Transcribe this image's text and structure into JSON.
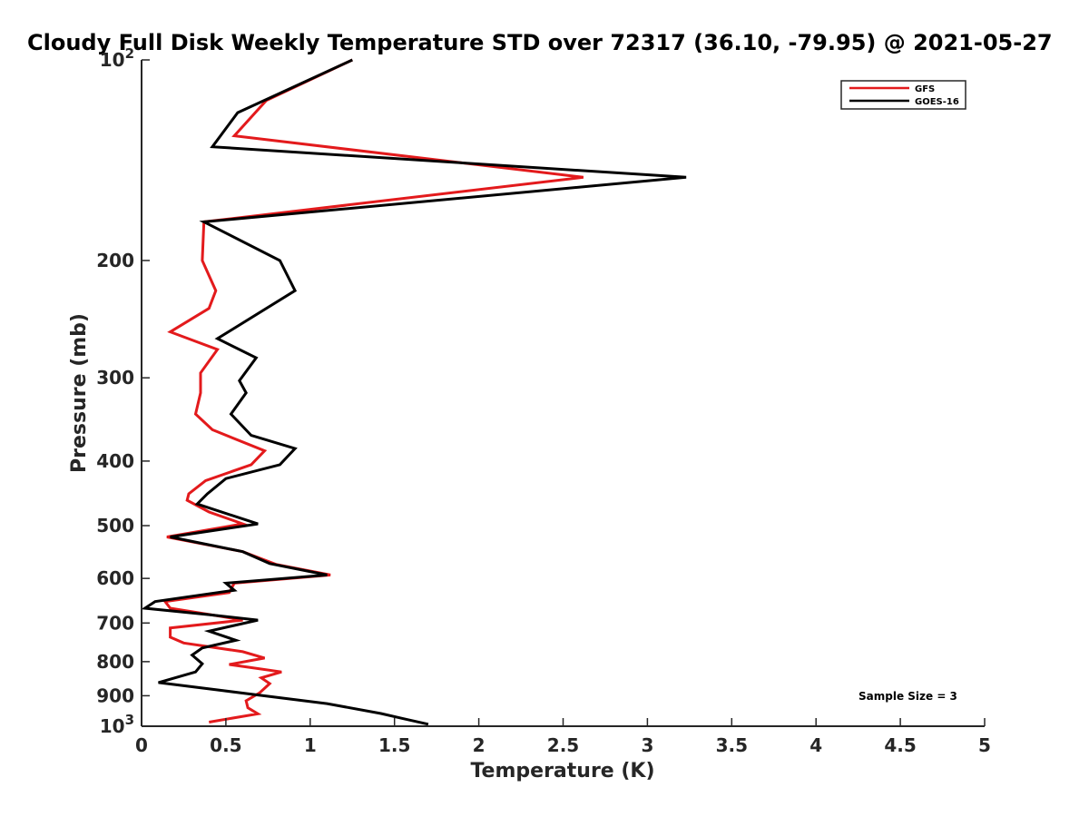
{
  "chart_data": {
    "type": "line",
    "title": "Cloudy Full Disk Weekly Temperature STD over 72317 (36.10, -79.95) @ 2021-05-27",
    "xlabel": "Temperature (K)",
    "ylabel": "Pressure (mb)",
    "xlim": [
      0,
      5
    ],
    "ylim": [
      1000,
      100
    ],
    "y_scale": "log",
    "y_reversed": true,
    "grid": false,
    "legend_position": "top-right",
    "x_ticks": [
      0,
      0.5,
      1,
      1.5,
      2,
      2.5,
      3,
      3.5,
      4,
      4.5,
      5
    ],
    "x_tick_labels": [
      "0",
      "0.5",
      "1",
      "1.5",
      "2",
      "2.5",
      "3",
      "3.5",
      "4",
      "4.5",
      "5"
    ],
    "y_ticks": [
      100,
      200,
      300,
      400,
      500,
      600,
      700,
      800,
      900,
      1000
    ],
    "y_tick_labels": [
      {
        "base": "10",
        "exp": "2"
      },
      {
        "base": "200",
        "exp": ""
      },
      {
        "base": "300",
        "exp": ""
      },
      {
        "base": "400",
        "exp": ""
      },
      {
        "base": "500",
        "exp": ""
      },
      {
        "base": "600",
        "exp": ""
      },
      {
        "base": "700",
        "exp": ""
      },
      {
        "base": "800",
        "exp": ""
      },
      {
        "base": "900",
        "exp": ""
      },
      {
        "base": "10",
        "exp": "3"
      }
    ],
    "annotation": "Sample Size = 3",
    "series": [
      {
        "name": "GFS",
        "color": "#e31a1c",
        "points": [
          [
            1.25,
            100
          ],
          [
            0.74,
            115
          ],
          [
            0.55,
            130
          ],
          [
            2.62,
            150
          ],
          [
            0.37,
            175
          ],
          [
            0.36,
            200
          ],
          [
            0.44,
            222
          ],
          [
            0.4,
            236
          ],
          [
            0.17,
            256
          ],
          [
            0.45,
            272
          ],
          [
            0.35,
            295
          ],
          [
            0.35,
            316
          ],
          [
            0.32,
            340
          ],
          [
            0.42,
            359
          ],
          [
            0.73,
            386
          ],
          [
            0.65,
            405
          ],
          [
            0.38,
            428
          ],
          [
            0.28,
            448
          ],
          [
            0.27,
            458
          ],
          [
            0.4,
            477
          ],
          [
            0.6,
            497
          ],
          [
            0.15,
            520
          ],
          [
            0.6,
            547
          ],
          [
            0.8,
            572
          ],
          [
            1.12,
            593
          ],
          [
            0.55,
            610
          ],
          [
            0.52,
            630
          ],
          [
            0.14,
            650
          ],
          [
            0.17,
            665
          ],
          [
            0.5,
            686
          ],
          [
            0.6,
            693
          ],
          [
            0.17,
            712
          ],
          [
            0.17,
            735
          ],
          [
            0.25,
            750
          ],
          [
            0.6,
            773
          ],
          [
            0.73,
            790
          ],
          [
            0.52,
            808
          ],
          [
            0.83,
            829
          ],
          [
            0.71,
            846
          ],
          [
            0.76,
            863
          ],
          [
            0.7,
            891
          ],
          [
            0.62,
            916
          ],
          [
            0.63,
            938
          ],
          [
            0.69,
            958
          ],
          [
            0.4,
            986
          ]
        ]
      },
      {
        "name": "GOES-16",
        "color": "#000000",
        "points": [
          [
            1.25,
            100
          ],
          [
            0.57,
            120
          ],
          [
            0.42,
            135
          ],
          [
            3.23,
            150
          ],
          [
            0.37,
            175
          ],
          [
            0.82,
            200
          ],
          [
            0.91,
            222
          ],
          [
            0.45,
            262
          ],
          [
            0.68,
            280
          ],
          [
            0.58,
            303
          ],
          [
            0.62,
            316
          ],
          [
            0.53,
            340
          ],
          [
            0.65,
            366
          ],
          [
            0.91,
            383
          ],
          [
            0.82,
            405
          ],
          [
            0.5,
            425
          ],
          [
            0.39,
            448
          ],
          [
            0.33,
            464
          ],
          [
            0.69,
            497
          ],
          [
            0.17,
            520
          ],
          [
            0.6,
            547
          ],
          [
            0.76,
            570
          ],
          [
            1.1,
            593
          ],
          [
            0.5,
            610
          ],
          [
            0.55,
            625
          ],
          [
            0.08,
            650
          ],
          [
            0.02,
            665
          ],
          [
            0.4,
            680
          ],
          [
            0.69,
            693
          ],
          [
            0.4,
            720
          ],
          [
            0.56,
            743
          ],
          [
            0.36,
            763
          ],
          [
            0.3,
            782
          ],
          [
            0.36,
            806
          ],
          [
            0.32,
            829
          ],
          [
            0.1,
            860
          ],
          [
            1.1,
            925
          ],
          [
            1.42,
            957
          ],
          [
            1.55,
            974
          ],
          [
            1.7,
            993
          ]
        ]
      }
    ]
  }
}
